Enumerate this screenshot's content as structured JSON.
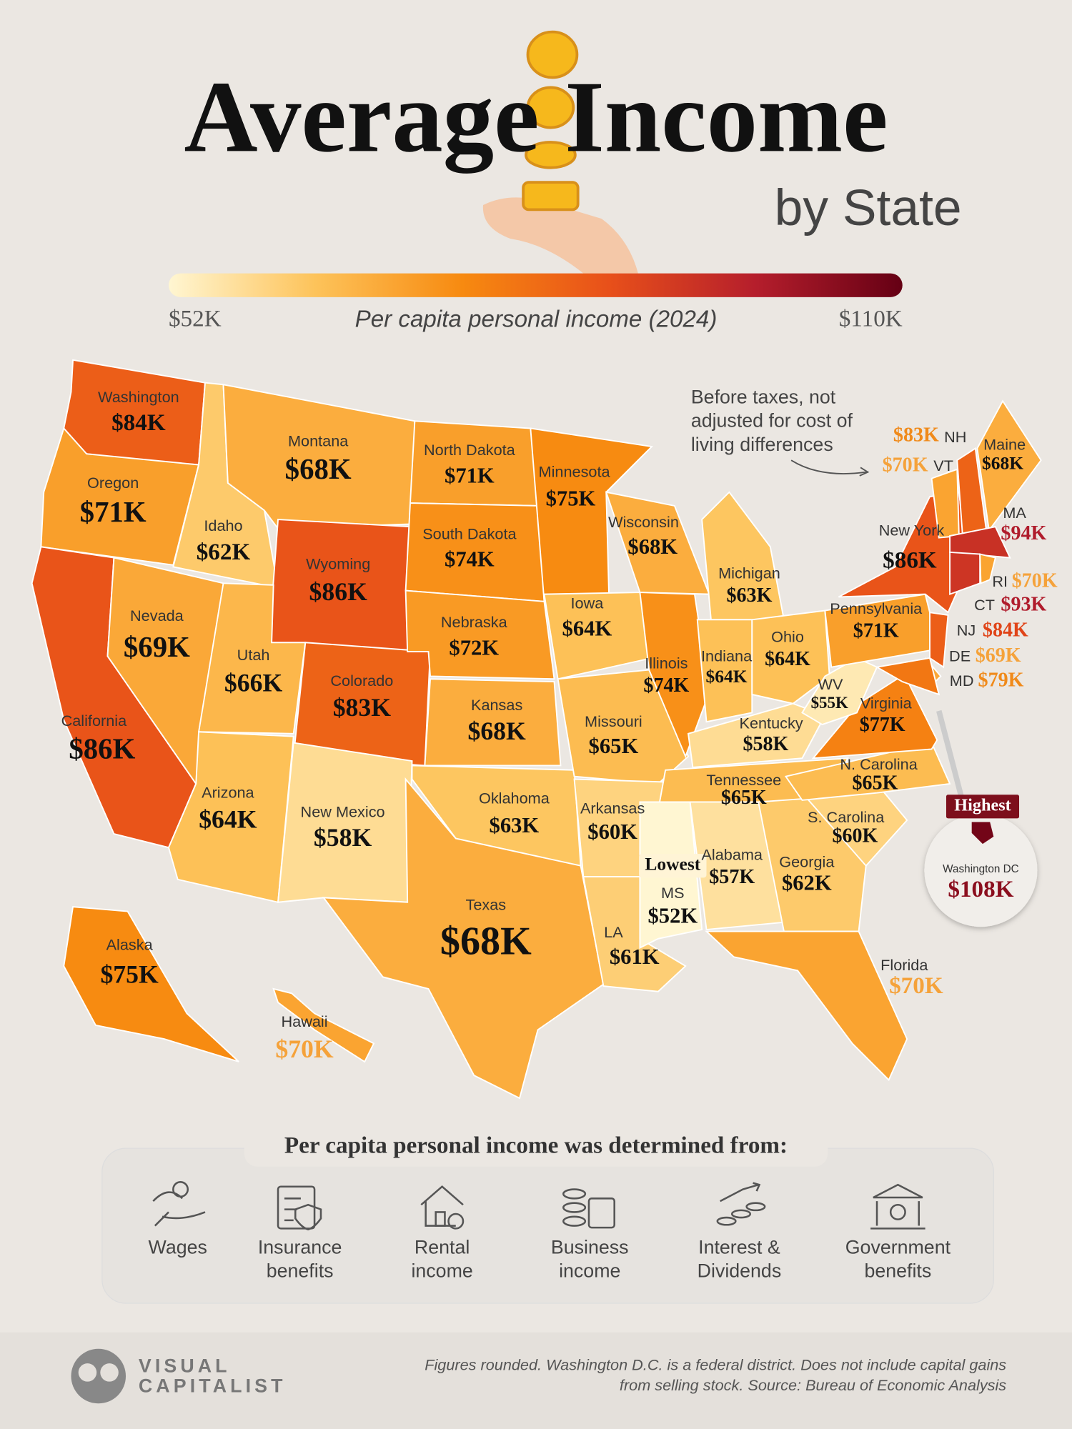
{
  "header": {
    "title": "Average Income",
    "subtitle": "by State"
  },
  "legend": {
    "title": "Per capita personal income (2024)",
    "min": {
      "value": 52,
      "label": "$52K"
    },
    "max": {
      "value": 110,
      "label": "$110K"
    },
    "colors": [
      "#fff6d2",
      "#fdc35a",
      "#f78a10",
      "#e8501a",
      "#b51e2c",
      "#650014"
    ]
  },
  "annotation": [
    "Before taxes, not",
    "adjusted for cost of",
    "living differences"
  ],
  "states": [
    {
      "name": "Washington",
      "value": 84,
      "label": "$84K"
    },
    {
      "name": "Oregon",
      "value": 71,
      "label": "$71K"
    },
    {
      "name": "California",
      "value": 86,
      "label": "$86K"
    },
    {
      "name": "Nevada",
      "value": 69,
      "label": "$69K"
    },
    {
      "name": "Idaho",
      "value": 62,
      "label": "$62K"
    },
    {
      "name": "Montana",
      "value": 68,
      "label": "$68K"
    },
    {
      "name": "Wyoming",
      "value": 86,
      "label": "$86K"
    },
    {
      "name": "Utah",
      "value": 66,
      "label": "$66K"
    },
    {
      "name": "Colorado",
      "value": 83,
      "label": "$83K"
    },
    {
      "name": "Arizona",
      "value": 64,
      "label": "$64K"
    },
    {
      "name": "New Mexico",
      "value": 58,
      "label": "$58K"
    },
    {
      "name": "North Dakota",
      "value": 71,
      "label": "$71K"
    },
    {
      "name": "South Dakota",
      "value": 74,
      "label": "$74K"
    },
    {
      "name": "Nebraska",
      "value": 72,
      "label": "$72K"
    },
    {
      "name": "Kansas",
      "value": 68,
      "label": "$68K"
    },
    {
      "name": "Oklahoma",
      "value": 63,
      "label": "$63K"
    },
    {
      "name": "Texas",
      "value": 68,
      "label": "$68K"
    },
    {
      "name": "Minnesota",
      "value": 75,
      "label": "$75K"
    },
    {
      "name": "Iowa",
      "value": 64,
      "label": "$64K"
    },
    {
      "name": "Missouri",
      "value": 65,
      "label": "$65K"
    },
    {
      "name": "Arkansas",
      "value": 60,
      "label": "$60K"
    },
    {
      "name": "LA",
      "value": 61,
      "label": "$61K"
    },
    {
      "name": "Wisconsin",
      "value": 68,
      "label": "$68K"
    },
    {
      "name": "Illinois",
      "value": 74,
      "label": "$74K"
    },
    {
      "name": "Michigan",
      "value": 63,
      "label": "$63K"
    },
    {
      "name": "Indiana",
      "value": 64,
      "label": "$64K"
    },
    {
      "name": "Ohio",
      "value": 64,
      "label": "$64K"
    },
    {
      "name": "Kentucky",
      "value": 58,
      "label": "$58K"
    },
    {
      "name": "Tennessee",
      "value": 65,
      "label": "$65K"
    },
    {
      "name": "MS",
      "value": 52,
      "label": "$52K",
      "badge": "Lowest"
    },
    {
      "name": "Alabama",
      "value": 57,
      "label": "$57K"
    },
    {
      "name": "Georgia",
      "value": 62,
      "label": "$62K"
    },
    {
      "name": "Florida",
      "value": 70,
      "label": "$70K"
    },
    {
      "name": "S. Carolina",
      "value": 60,
      "label": "$60K"
    },
    {
      "name": "N. Carolina",
      "value": 65,
      "label": "$65K"
    },
    {
      "name": "Virginia",
      "value": 77,
      "label": "$77K"
    },
    {
      "name": "WV",
      "value": 55,
      "label": "$55K"
    },
    {
      "name": "Pennsylvania",
      "value": 71,
      "label": "$71K"
    },
    {
      "name": "New York",
      "value": 86,
      "label": "$86K"
    },
    {
      "name": "NJ",
      "value": 84,
      "label": "$84K"
    },
    {
      "name": "DE",
      "value": 69,
      "label": "$69K"
    },
    {
      "name": "MD",
      "value": 79,
      "label": "$79K"
    },
    {
      "name": "VT",
      "value": 70,
      "label": "$70K"
    },
    {
      "name": "NH",
      "value": 83,
      "label": "$83K"
    },
    {
      "name": "Maine",
      "value": 68,
      "label": "$68K"
    },
    {
      "name": "MA",
      "value": 94,
      "label": "$94K"
    },
    {
      "name": "CT",
      "value": 93,
      "label": "$93K"
    },
    {
      "name": "RI",
      "value": 70,
      "label": "$70K"
    },
    {
      "name": "Alaska",
      "value": 75,
      "label": "$75K"
    },
    {
      "name": "Hawaii",
      "value": 70,
      "label": "$70K"
    }
  ],
  "district": {
    "name": "Washington DC",
    "value": 108,
    "label": "$108K",
    "badge": "Highest"
  },
  "sources": {
    "title": "Per capita personal income was determined from:",
    "items": [
      {
        "lines": [
          "Wages"
        ]
      },
      {
        "lines": [
          "Insurance",
          "benefits"
        ]
      },
      {
        "lines": [
          "Rental",
          "income"
        ]
      },
      {
        "lines": [
          "Business",
          "income"
        ]
      },
      {
        "lines": [
          "Interest &",
          "Dividends"
        ]
      },
      {
        "lines": [
          "Government",
          "benefits"
        ]
      }
    ]
  },
  "footer": {
    "brand": [
      "VISUAL",
      "CAPITALIST"
    ],
    "note": [
      "Figures rounded. Washington D.C. is a federal district. Does not include capital gains",
      "from selling stock. Source: Bureau of Economic Analysis"
    ]
  }
}
